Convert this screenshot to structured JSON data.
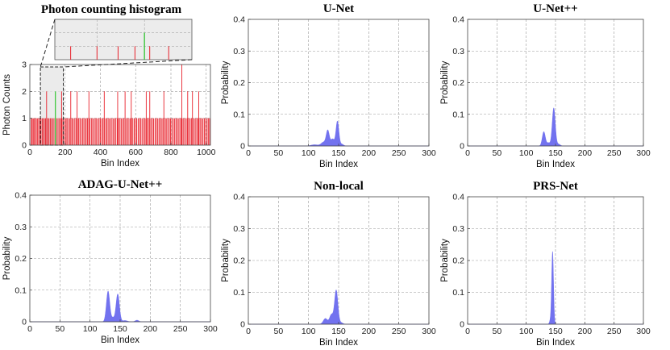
{
  "chart_data": [
    {
      "id": "histogram",
      "type": "bar",
      "title": "Photon counting histogram",
      "xlabel": "Bin Index",
      "ylabel": "Photon Counts",
      "xlim": [
        0,
        1024
      ],
      "ylim": [
        0,
        3
      ],
      "xticks": [
        0,
        200,
        400,
        600,
        800,
        1000
      ],
      "yticks": [
        0,
        1,
        2,
        3
      ],
      "grid": true,
      "bar_color": "#e8202a",
      "signal_color": "#22c222",
      "signal_bin": 145,
      "count_one_bins": [
        8,
        13,
        19,
        24,
        31,
        37,
        44,
        50,
        57,
        63,
        70,
        76,
        83,
        89,
        96,
        103,
        109,
        116,
        122,
        130,
        137,
        152,
        160,
        168,
        175,
        183,
        190,
        198,
        205,
        211,
        218,
        226,
        233,
        240,
        247,
        255,
        262,
        270,
        277,
        284,
        291,
        299,
        306,
        313,
        320,
        327,
        334,
        341,
        349,
        356,
        364,
        371,
        378,
        386,
        393,
        400,
        408,
        415,
        422,
        430,
        437,
        444,
        451,
        459,
        466,
        474,
        481,
        488,
        496,
        503,
        511,
        518,
        525,
        533,
        540,
        547,
        555,
        562,
        570,
        577,
        584,
        592,
        599,
        606,
        614,
        621,
        628,
        636,
        643,
        651,
        658,
        665,
        673,
        680,
        687,
        695,
        702,
        710,
        717,
        724,
        732,
        739,
        746,
        754,
        761,
        769,
        776,
        783,
        791,
        798,
        805,
        813,
        820,
        828,
        835,
        842,
        850,
        857,
        864,
        872,
        879,
        887,
        894,
        901,
        909,
        916,
        923,
        931,
        938,
        946,
        953,
        960,
        968,
        975,
        982,
        990,
        997,
        1005,
        1012,
        1019
      ],
      "count_two_bins": [
        95,
        180,
        232,
        268,
        335,
        422,
        498,
        540,
        575,
        660,
        680,
        760,
        895,
        922,
        958
      ],
      "count_three_bins": [
        862
      ],
      "inset": {
        "xlim": [
          60,
          190
        ],
        "bins": [
          75,
          100,
          150,
          168
        ],
        "tall_bins": [
          120,
          136
        ],
        "signal_bin": 145
      }
    },
    {
      "id": "unet",
      "type": "area",
      "title": "U-Net",
      "xlabel": "Bin Index",
      "ylabel": "Probability",
      "xlim": [
        0,
        300
      ],
      "ylim": [
        0,
        0.4
      ],
      "xticks": [
        0,
        50,
        100,
        150,
        200,
        250,
        300
      ],
      "yticks": [
        0,
        0.1,
        0.2,
        0.3,
        0.4
      ],
      "color": "#6a6aee",
      "peaks": [
        {
          "center": 110,
          "height": 0.004,
          "width": 6
        },
        {
          "center": 125,
          "height": 0.012,
          "width": 4
        },
        {
          "center": 132,
          "height": 0.048,
          "width": 2.6
        },
        {
          "center": 140,
          "height": 0.022,
          "width": 3
        },
        {
          "center": 148,
          "height": 0.078,
          "width": 2.4
        },
        {
          "center": 155,
          "height": 0.006,
          "width": 3
        }
      ]
    },
    {
      "id": "unetpp",
      "type": "area",
      "title": "U-Net++",
      "xlabel": "Bin Index",
      "ylabel": "Probability",
      "xlim": [
        0,
        300
      ],
      "ylim": [
        0,
        0.4
      ],
      "xticks": [
        0,
        50,
        100,
        150,
        200,
        250,
        300
      ],
      "yticks": [
        0,
        0.1,
        0.2,
        0.3,
        0.4
      ],
      "color": "#6a6aee",
      "peaks": [
        {
          "center": 130,
          "height": 0.045,
          "width": 2.6
        },
        {
          "center": 138,
          "height": 0.01,
          "width": 3
        },
        {
          "center": 147,
          "height": 0.12,
          "width": 2.6
        },
        {
          "center": 155,
          "height": 0.006,
          "width": 3
        }
      ]
    },
    {
      "id": "adag",
      "type": "area",
      "title": "ADAG-U-Net++",
      "xlabel": "Bin Index",
      "ylabel": "Probability",
      "xlim": [
        0,
        300
      ],
      "ylim": [
        0,
        0.4
      ],
      "xticks": [
        0,
        50,
        100,
        150,
        200,
        250,
        300
      ],
      "yticks": [
        0,
        0.1,
        0.2,
        0.3,
        0.4
      ],
      "color": "#6a6aee",
      "peaks": [
        {
          "center": 130,
          "height": 0.097,
          "width": 2.8
        },
        {
          "center": 138,
          "height": 0.012,
          "width": 2.5
        },
        {
          "center": 146,
          "height": 0.088,
          "width": 2.8
        },
        {
          "center": 158,
          "height": 0.004,
          "width": 4
        },
        {
          "center": 178,
          "height": 0.005,
          "width": 3
        }
      ]
    },
    {
      "id": "nonlocal",
      "type": "area",
      "title": "Non-local",
      "xlabel": "Bin Index",
      "ylabel": "Probability",
      "xlim": [
        0,
        300
      ],
      "ylim": [
        0,
        0.4
      ],
      "xticks": [
        0,
        50,
        100,
        150,
        200,
        250,
        300
      ],
      "yticks": [
        0,
        0.1,
        0.2,
        0.3,
        0.4
      ],
      "color": "#6a6aee",
      "peaks": [
        {
          "center": 128,
          "height": 0.018,
          "width": 3.5
        },
        {
          "center": 138,
          "height": 0.03,
          "width": 3
        },
        {
          "center": 146,
          "height": 0.107,
          "width": 2.8
        },
        {
          "center": 154,
          "height": 0.005,
          "width": 3
        }
      ]
    },
    {
      "id": "prsnet",
      "type": "area",
      "title": "PRS-Net",
      "xlabel": "Bin Index",
      "ylabel": "Probability",
      "xlim": [
        0,
        300
      ],
      "ylim": [
        0,
        0.4
      ],
      "xticks": [
        0,
        50,
        100,
        150,
        200,
        250,
        300
      ],
      "yticks": [
        0,
        0.1,
        0.2,
        0.3,
        0.4
      ],
      "color": "#6a6aee",
      "peaks": [
        {
          "center": 145,
          "height": 0.228,
          "width": 1.6
        },
        {
          "center": 141,
          "height": 0.01,
          "width": 1.5
        }
      ]
    }
  ]
}
